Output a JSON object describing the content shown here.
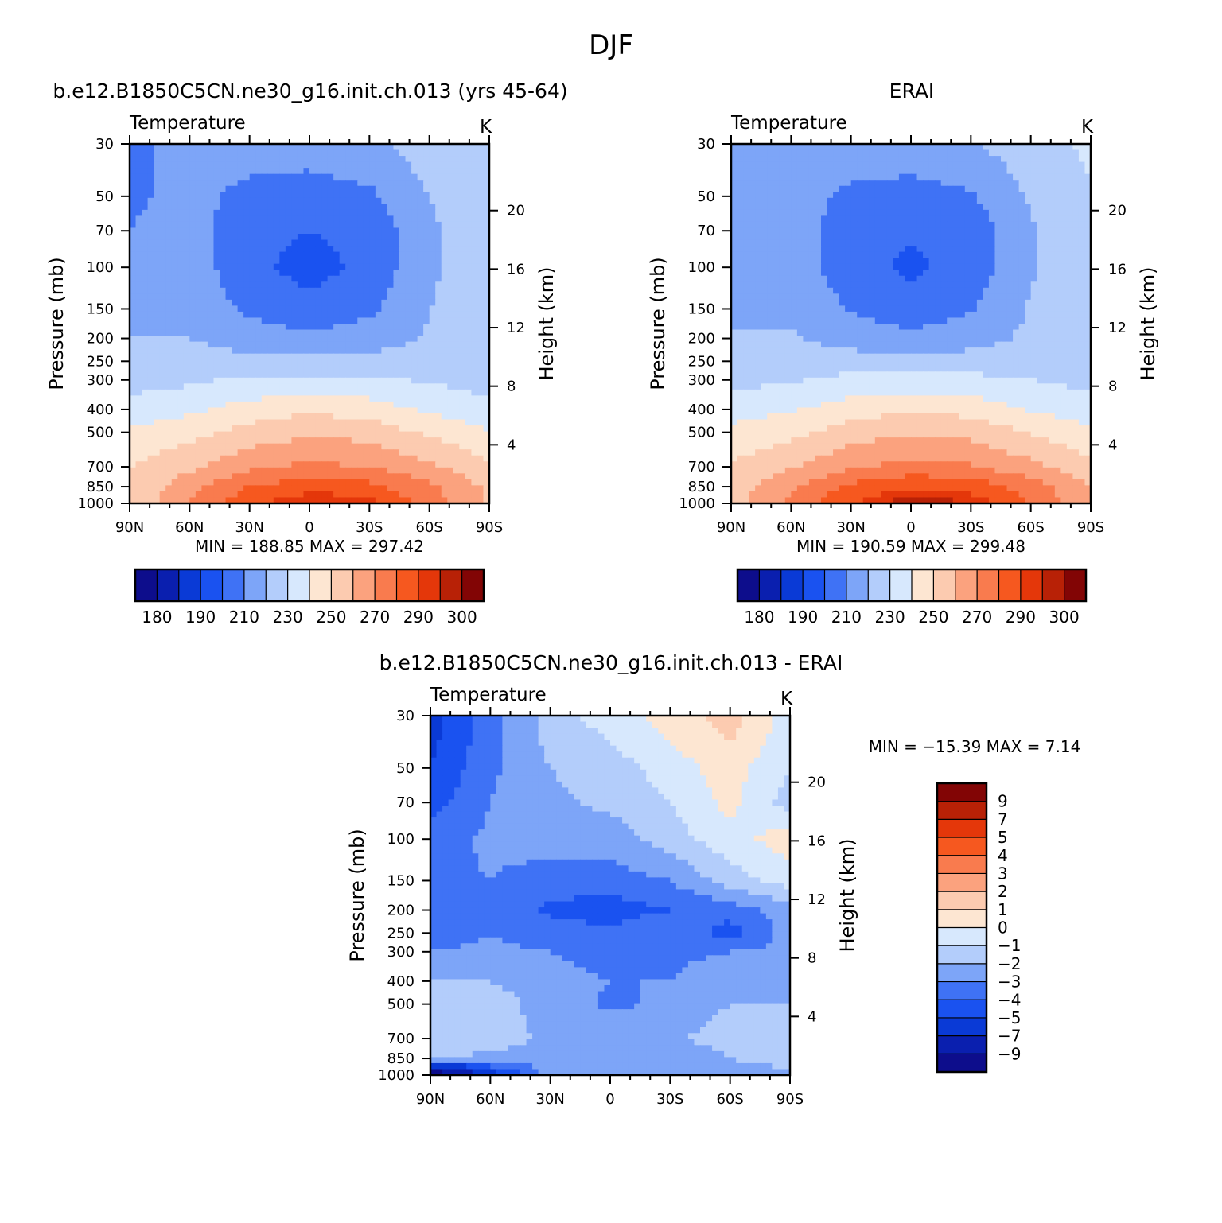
{
  "figure": {
    "title": "DJF",
    "units_label": "K"
  },
  "colors": {
    "abs_scale": [
      "#0d0d8c",
      "#0a1faf",
      "#0a3ad6",
      "#1a52f0",
      "#3f72f5",
      "#7da5f8",
      "#b3cdfb",
      "#d7e8fd",
      "#fde6d2",
      "#fccbb0",
      "#fba27e",
      "#f97b4e",
      "#f6581f",
      "#e4370a",
      "#b82106",
      "#820505"
    ],
    "diff_scale": [
      "#0d0d8c",
      "#0a1faf",
      "#0a3ad6",
      "#1a52f0",
      "#3f72f5",
      "#7da5f8",
      "#b3cdfb",
      "#d7e8fd",
      "#fde6d2",
      "#fccbb0",
      "#fba27e",
      "#f97b4e",
      "#f6581f",
      "#e4370a",
      "#b82106",
      "#820505"
    ]
  },
  "chart_data": [
    {
      "type": "heatmap",
      "panel": "model",
      "title": "b.e12.B1850C5CN.ne30_g16.init.ch.013 (yrs 45-64)",
      "variable": "Temperature",
      "units": "K",
      "xlabel": "",
      "ylabel": "Pressure (mb)",
      "y2label": "Height (km)",
      "x_tick_labels": [
        "90N",
        "60N",
        "30N",
        "0",
        "30S",
        "60S",
        "90S"
      ],
      "y_ticks": [
        30,
        50,
        70,
        100,
        150,
        200,
        250,
        300,
        400,
        500,
        700,
        850,
        1000
      ],
      "y2_ticks": [
        20,
        16,
        12,
        8,
        4
      ],
      "min": 188.85,
      "max": 297.42,
      "min_text": "MIN = 188.85   MAX = 297.42",
      "colorbar_labels": [
        "180",
        "190",
        "210",
        "230",
        "250",
        "270",
        "290",
        "300"
      ],
      "field": {
        "x": [
          90,
          60,
          30,
          0,
          -30,
          -60,
          -90
        ],
        "pressure": [
          30,
          50,
          70,
          100,
          150,
          200,
          250,
          300,
          400,
          500,
          700,
          850,
          1000
        ],
        "values": [
          [
            208,
            213,
            215,
            215,
            218,
            225,
            230
          ],
          [
            208,
            213,
            207,
            205,
            208,
            220,
            228
          ],
          [
            210,
            215,
            203,
            200,
            203,
            218,
            229
          ],
          [
            214,
            215,
            203,
            196,
            203,
            218,
            228
          ],
          [
            217,
            217,
            208,
            203,
            208,
            220,
            225
          ],
          [
            220,
            220,
            215,
            212,
            215,
            221,
            222
          ],
          [
            222,
            224,
            223,
            222,
            223,
            224,
            222
          ],
          [
            226,
            228,
            232,
            232,
            232,
            229,
            226
          ],
          [
            234,
            238,
            244,
            248,
            245,
            238,
            233
          ],
          [
            242,
            246,
            254,
            258,
            256,
            248,
            241
          ],
          [
            250,
            258,
            268,
            272,
            270,
            262,
            252
          ],
          [
            252,
            266,
            280,
            286,
            283,
            272,
            258
          ],
          [
            250,
            270,
            288,
            297,
            294,
            275,
            258
          ]
        ]
      }
    },
    {
      "type": "heatmap",
      "panel": "obs",
      "title": "ERAI",
      "variable": "Temperature",
      "units": "K",
      "xlabel": "",
      "ylabel": "Pressure (mb)",
      "y2label": "Height (km)",
      "x_tick_labels": [
        "90N",
        "60N",
        "30N",
        "0",
        "30S",
        "60S",
        "90S"
      ],
      "y_ticks": [
        30,
        50,
        70,
        100,
        150,
        200,
        250,
        300,
        400,
        500,
        700,
        850,
        1000
      ],
      "y2_ticks": [
        20,
        16,
        12,
        8,
        4
      ],
      "min": 190.59,
      "max": 299.48,
      "min_text": "MIN = 190.59   MAX = 299.48",
      "colorbar_labels": [
        "180",
        "190",
        "210",
        "230",
        "250",
        "270",
        "290",
        "300"
      ],
      "field": {
        "x": [
          90,
          60,
          30,
          0,
          -30,
          -60,
          -90
        ],
        "pressure": [
          30,
          50,
          70,
          100,
          150,
          200,
          250,
          300,
          400,
          500,
          700,
          850,
          1000
        ],
        "values": [
          [
            210,
            214,
            216,
            216,
            219,
            226,
            232
          ],
          [
            210,
            214,
            208,
            206,
            209,
            221,
            229
          ],
          [
            212,
            216,
            204,
            201,
            204,
            219,
            230
          ],
          [
            215,
            216,
            204,
            198,
            204,
            219,
            229
          ],
          [
            218,
            218,
            209,
            204,
            209,
            221,
            226
          ],
          [
            221,
            221,
            216,
            213,
            216,
            222,
            223
          ],
          [
            223,
            225,
            224,
            223,
            224,
            225,
            223
          ],
          [
            227,
            229,
            233,
            233,
            233,
            230,
            227
          ],
          [
            235,
            239,
            245,
            249,
            246,
            239,
            234
          ],
          [
            243,
            247,
            255,
            259,
            257,
            249,
            242
          ],
          [
            251,
            259,
            269,
            273,
            271,
            263,
            253
          ],
          [
            255,
            268,
            282,
            289,
            286,
            275,
            260
          ],
          [
            256,
            272,
            290,
            299,
            296,
            279,
            263
          ]
        ]
      }
    },
    {
      "type": "heatmap",
      "panel": "diff",
      "title": "b.e12.B1850C5CN.ne30_g16.init.ch.013 - ERAI",
      "variable": "Temperature",
      "units": "K",
      "xlabel": "",
      "ylabel": "Pressure (mb)",
      "y2label": "Height (km)",
      "x_tick_labels": [
        "90N",
        "60N",
        "30N",
        "0",
        "30S",
        "60S",
        "90S"
      ],
      "y_ticks": [
        30,
        50,
        70,
        100,
        150,
        200,
        250,
        300,
        400,
        500,
        700,
        850,
        1000
      ],
      "y2_ticks": [
        20,
        16,
        12,
        8,
        4
      ],
      "min": -15.39,
      "max": 7.14,
      "min_text": "MIN = −15.39   MAX =     7.14",
      "colorbar_labels": [
        "9",
        "7",
        "5",
        "4",
        "3",
        "2",
        "1",
        "0",
        "−1",
        "−2",
        "−3",
        "−4",
        "−5",
        "−7",
        "−9"
      ],
      "field": {
        "x": [
          90,
          60,
          30,
          0,
          -30,
          -60,
          -90
        ],
        "pressure": [
          30,
          50,
          70,
          100,
          150,
          200,
          250,
          300,
          400,
          500,
          700,
          850,
          1000
        ],
        "values": [
          [
            -5.5,
            -3.5,
            -1.5,
            -0.5,
            0.5,
            1.5,
            -0.5
          ],
          [
            -5.0,
            -3.2,
            -2.0,
            -1.5,
            -0.5,
            0.5,
            -1.0
          ],
          [
            -4.5,
            -3.0,
            -2.2,
            -1.8,
            -1.0,
            0.3,
            -1.5
          ],
          [
            -3.5,
            -2.8,
            -2.5,
            -2.5,
            -1.5,
            -0.3,
            0.5
          ],
          [
            -3.2,
            -3.0,
            -3.5,
            -3.5,
            -3.0,
            -1.5,
            -0.5
          ],
          [
            -4.0,
            -3.2,
            -4.2,
            -4.5,
            -4.0,
            -3.5,
            -2.5
          ],
          [
            -3.5,
            -3.0,
            -3.5,
            -3.8,
            -3.0,
            -4.5,
            -2.5
          ],
          [
            -3.0,
            -2.8,
            -3.0,
            -3.5,
            -3.2,
            -3.0,
            -2.8
          ],
          [
            -1.8,
            -2.0,
            -2.5,
            -3.0,
            -3.0,
            -2.5,
            -2.2
          ],
          [
            -1.5,
            -1.5,
            -2.5,
            -3.2,
            -2.8,
            -2.0,
            -2.0
          ],
          [
            -1.5,
            -1.5,
            -2.2,
            -2.2,
            -2.2,
            -1.5,
            -1.0
          ],
          [
            -2.0,
            -2.2,
            -2.5,
            -2.5,
            -2.8,
            -2.0,
            -1.2
          ],
          [
            -12.0,
            -6.0,
            -2.5,
            -2.5,
            -3.0,
            -3.0,
            -2.5
          ]
        ]
      }
    }
  ]
}
